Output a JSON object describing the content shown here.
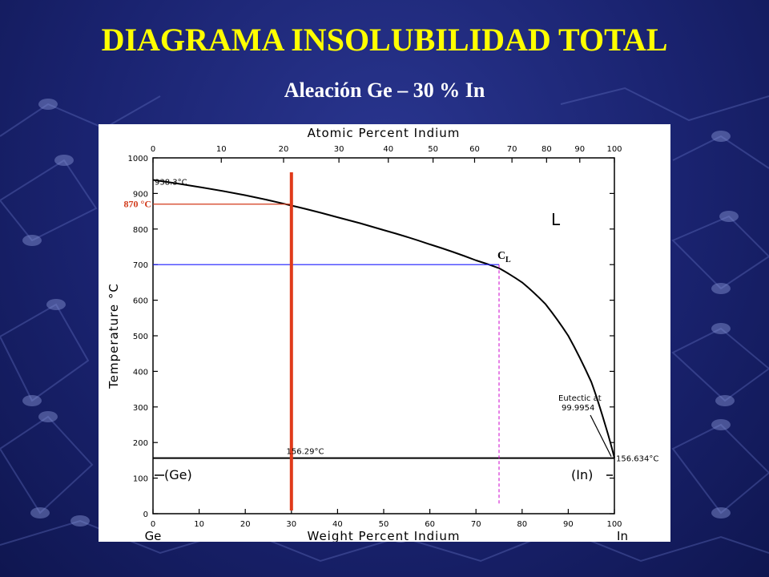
{
  "slide": {
    "title": "DIAGRAMA INSOLUBILIDAD TOTAL",
    "subtitle": "Aleación Ge – 30 % In"
  },
  "colors": {
    "title": "#ffff00",
    "subtitle": "#ffffff",
    "alloy_line": "#e03a1a",
    "temp_marker": "#d23a1a",
    "isotherm": "#1a1aff",
    "composition_drop": "#cc00cc",
    "background": "#1a2370"
  },
  "chart_data": {
    "type": "line",
    "top_axis_label": "Atomic Percent Indium",
    "top_ticks": [
      "0",
      "10",
      "20",
      "30",
      "40",
      "50",
      "60",
      "70",
      "80",
      "90",
      "100"
    ],
    "xlabel": "Weight Percent Indium",
    "ylabel": "Temperature °C",
    "xlim": [
      0,
      100
    ],
    "ylim": [
      0,
      1000
    ],
    "x_ticks": [
      "0",
      "10",
      "20",
      "30",
      "40",
      "50",
      "60",
      "70",
      "80",
      "90",
      "100"
    ],
    "y_ticks": [
      "0",
      "100",
      "200",
      "300",
      "400",
      "500",
      "600",
      "700",
      "800",
      "900",
      "1000"
    ],
    "x_end_labels": {
      "left": "Ge",
      "right": "In"
    },
    "liquidus": {
      "x": [
        0,
        10,
        20,
        30,
        40,
        50,
        60,
        70,
        75,
        80,
        85,
        90,
        95,
        98,
        100
      ],
      "y": [
        938,
        918,
        895,
        866,
        833,
        797,
        757,
        712,
        690,
        650,
        590,
        500,
        370,
        250,
        157
      ]
    },
    "eutectic_temperature": 156.3,
    "annotations": {
      "ge_melting": "938.3°C",
      "eutectic_left": "156.29°C",
      "eutectic_right": "156.634°C",
      "eutectic_note_1": "Eutectic at",
      "eutectic_note_2": "99.9954",
      "region_liquid": "L",
      "ge_phase": "(Ge)",
      "in_phase": "(In)",
      "temp_marker": "870 °C",
      "cl_main": "C",
      "cl_sub": "L"
    },
    "alloy_composition": 30,
    "marker_temperature": 870,
    "isotherm_temperature": 700,
    "cl_composition": 75
  }
}
